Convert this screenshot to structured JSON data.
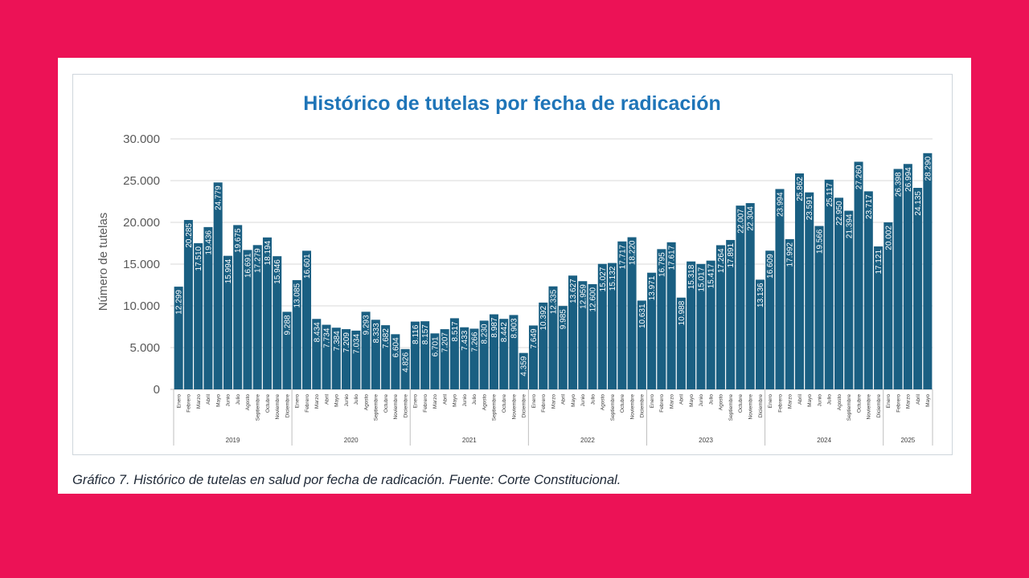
{
  "chart_data": {
    "type": "bar",
    "title": "Histórico de tutelas por fecha de radicación",
    "ylabel": "Número de tutelas",
    "xlabel": "",
    "ylim": [
      0,
      30000
    ],
    "yticks": [
      "0",
      "5.000",
      "10.000",
      "15.000",
      "20.000",
      "25.000",
      "30.000"
    ],
    "grid": true,
    "legend": "none",
    "colors": {
      "bar": "#1A5F82",
      "title": "#1F75B8",
      "grid": "#d9d9d9"
    },
    "years": [
      {
        "label": "2019",
        "months": [
          "Enero",
          "Febrero",
          "Marzo",
          "Abril",
          "Mayo",
          "Junio",
          "Julio",
          "Agosto",
          "Septiembre",
          "Octubre",
          "Noviembre",
          "Diciembre"
        ],
        "values": [
          12299,
          20285,
          17510,
          19436,
          24779,
          15994,
          19675,
          16691,
          17279,
          18194,
          15946,
          9288
        ],
        "labels": [
          "12.299",
          "20.285",
          "17.510",
          "19.436",
          "24.779",
          "15.994",
          "19.675",
          "16.691",
          "17.279",
          "18.194",
          "15.946",
          "9.288"
        ]
      },
      {
        "label": "2020",
        "months": [
          "Enero",
          "Febrero",
          "Marzo",
          "Abril",
          "Mayo",
          "Junio",
          "Julio",
          "Agosto",
          "Septiembre",
          "Octubre",
          "Noviembre",
          "Diciembre"
        ],
        "values": [
          13085,
          16601,
          8434,
          7734,
          7384,
          7209,
          7034,
          9293,
          8333,
          7682,
          6604,
          4826
        ],
        "labels": [
          "13.085",
          "16.601",
          "8.434",
          "7.734",
          "7.384",
          "7.209",
          "7.034",
          "9.293",
          "8.333",
          "7.682",
          "6.604",
          "4.826"
        ]
      },
      {
        "label": "2021",
        "months": [
          "Enero",
          "Febrero",
          "Marzo",
          "Abril",
          "Mayo",
          "Junio",
          "Julio",
          "Agosto",
          "Septiembre",
          "Octubre",
          "Noviembre",
          "Diciembre"
        ],
        "values": [
          8116,
          8157,
          6701,
          7207,
          8517,
          7433,
          7266,
          8230,
          8987,
          8442,
          8903,
          4359
        ],
        "labels": [
          "8.116",
          "8.157",
          "6.701",
          "7.207",
          "8.517",
          "7.433",
          "7.266",
          "8.230",
          "8.987",
          "8.442",
          "8.903",
          "4.359"
        ]
      },
      {
        "label": "2022",
        "months": [
          "Enero",
          "Febrero",
          "Marzo",
          "Abril",
          "Mayo",
          "Junio",
          "Julio",
          "Agosto",
          "Septiembre",
          "Octubre",
          "Noviembre",
          "Diciembre"
        ],
        "values": [
          7649,
          10392,
          12335,
          9985,
          13627,
          12959,
          12600,
          15027,
          15132,
          17717,
          18220,
          10631
        ],
        "labels": [
          "7.649",
          "10.392",
          "12.335",
          "9.985",
          "13.627",
          "12.959",
          "12.600",
          "15.027",
          "15.132",
          "17.717",
          "18.220",
          "10.631"
        ]
      },
      {
        "label": "2023",
        "months": [
          "Enero",
          "Febrero",
          "Marzo",
          "Abril",
          "Mayo",
          "Junio",
          "Julio",
          "Agosto",
          "Septiembre",
          "Octubre",
          "Noviembre",
          "Diciembre"
        ],
        "values": [
          13971,
          16795,
          17617,
          10988,
          15318,
          15017,
          15417,
          17264,
          17891,
          22007,
          22304,
          13136
        ],
        "labels": [
          "13.971",
          "16.795",
          "17.617",
          "10.988",
          "15.318",
          "15.017",
          "15.417",
          "17.264",
          "17.891",
          "22.007",
          "22.304",
          "13.136"
        ]
      },
      {
        "label": "2024",
        "months": [
          "Enero",
          "Febrero",
          "Marzo",
          "Abril",
          "Mayo",
          "Junio",
          "Julio",
          "Agosto",
          "Septiembre",
          "Octubre",
          "Noviembre",
          "Diciembre"
        ],
        "values": [
          16609,
          23994,
          17992,
          25862,
          23591,
          19566,
          25117,
          22950,
          21394,
          27260,
          23717,
          17121
        ],
        "labels": [
          "16.609",
          "23.994",
          "17.992",
          "25.862",
          "23.591",
          "19.566",
          "25.117",
          "22.950",
          "21.394",
          "27.260",
          "23.717",
          "17.121"
        ]
      },
      {
        "label": "2025",
        "months": [
          "Enero",
          "Febrero",
          "Marzo",
          "Abril",
          "Mayo"
        ],
        "values": [
          20002,
          26398,
          26994,
          24135,
          28290
        ],
        "labels": [
          "20.002",
          "26.398",
          "26.994",
          "24.135",
          "28.290"
        ]
      }
    ]
  },
  "caption": "Gráfico 7.  Histórico de tutelas en salud por fecha de radicación.  Fuente: Corte Constitucional."
}
